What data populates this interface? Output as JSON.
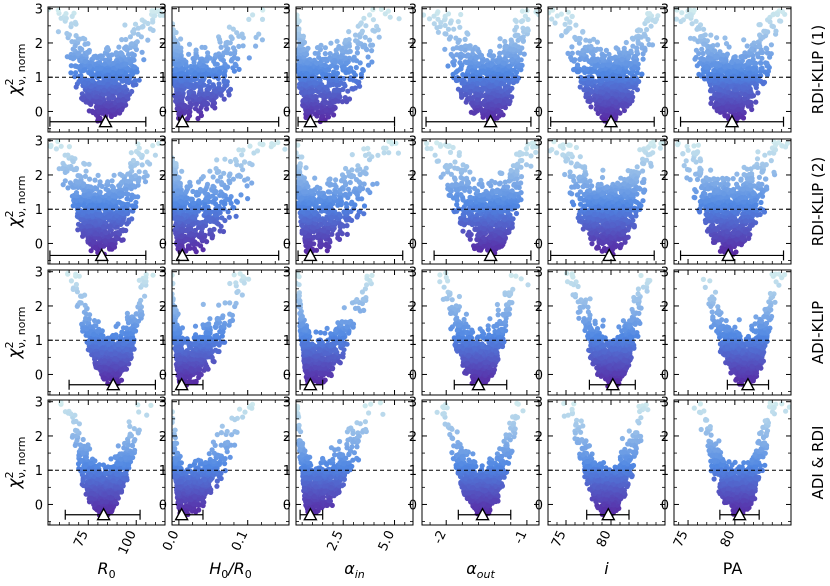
{
  "chart_data": {
    "type": "scatter",
    "rows": [
      {
        "name": "RDI-KLIP (1)"
      },
      {
        "name": "RDI-KLIP (2)"
      },
      {
        "name": "ADI-KLIP"
      },
      {
        "name": "ADI & RDI"
      }
    ],
    "columns": [
      {
        "label": "R",
        "label_sub": "0",
        "xticks": [
          75,
          100
        ],
        "xlim": [
          54,
          115
        ]
      },
      {
        "label": "H",
        "label_sub": "0",
        "label_tail": "/R",
        "label_tail_sub": "0",
        "xticks": [
          0.0,
          0.1
        ],
        "xlim": [
          -0.01,
          0.16
        ]
      },
      {
        "label": "α",
        "label_sub": "in",
        "xticks": [
          2.5,
          5.0
        ],
        "xlim": [
          0.2,
          5.9
        ]
      },
      {
        "label": "α",
        "label_sub": "out",
        "xticks": [
          -2,
          -1
        ],
        "xlim": [
          -2.3,
          -0.85
        ]
      },
      {
        "label": "i",
        "label_sub": "",
        "xticks": [
          75,
          80
        ],
        "xlim": [
          73,
          86
        ]
      },
      {
        "label": "PA",
        "label_sub": "",
        "xticks": [
          75,
          80
        ],
        "xlim": [
          73.5,
          86
        ]
      }
    ],
    "ylabel": {
      "main": "χ",
      "sup": "2",
      "sub": "ν, norm"
    },
    "ylim": [
      -0.6,
      3.05
    ],
    "yticks": [
      0,
      1,
      2,
      3
    ],
    "reference_line_y": 1,
    "best_fit": [
      [
        {
          "x": 84,
          "lo": 55,
          "hi": 105,
          "y": -0.3
        },
        {
          "x": 0.005,
          "lo": 0.0,
          "hi": 0.145,
          "y": -0.3
        },
        {
          "x": 0.9,
          "lo": 0.3,
          "hi": 5.0,
          "y": -0.3
        },
        {
          "x": -1.45,
          "lo": -2.25,
          "hi": -0.95,
          "y": -0.3
        },
        {
          "x": 80.0,
          "lo": 73.3,
          "hi": 84.8,
          "y": -0.3
        },
        {
          "x": 79.7,
          "lo": 74.2,
          "hi": 85.2,
          "y": -0.3
        }
      ],
      [
        {
          "x": 82,
          "lo": 55,
          "hi": 105,
          "y": -0.35
        },
        {
          "x": 0.005,
          "lo": 0.0,
          "hi": 0.145,
          "y": -0.35
        },
        {
          "x": 0.9,
          "lo": 0.3,
          "hi": 5.4,
          "y": -0.35
        },
        {
          "x": -1.45,
          "lo": -2.15,
          "hi": -0.95,
          "y": -0.35
        },
        {
          "x": 79.8,
          "lo": 73.3,
          "hi": 84.8,
          "y": -0.35
        },
        {
          "x": 79.3,
          "lo": 74.2,
          "hi": 85.2,
          "y": -0.35
        }
      ],
      [
        {
          "x": 88,
          "lo": 65,
          "hi": 110,
          "y": -0.3
        },
        {
          "x": 0.004,
          "lo": 0.0,
          "hi": 0.035,
          "y": -0.3
        },
        {
          "x": 0.9,
          "lo": 0.4,
          "hi": 1.5,
          "y": -0.3
        },
        {
          "x": -1.6,
          "lo": -1.9,
          "hi": -1.25,
          "y": -0.3
        },
        {
          "x": 80.2,
          "lo": 77.6,
          "hi": 82.7,
          "y": -0.3
        },
        {
          "x": 81.4,
          "lo": 79.2,
          "hi": 83.6,
          "y": -0.3
        }
      ],
      [
        {
          "x": 83,
          "lo": 63,
          "hi": 102,
          "y": -0.3
        },
        {
          "x": 0.004,
          "lo": 0.0,
          "hi": 0.035,
          "y": -0.3
        },
        {
          "x": 0.9,
          "lo": 0.4,
          "hi": 1.5,
          "y": -0.3
        },
        {
          "x": -1.55,
          "lo": -1.85,
          "hi": -1.2,
          "y": -0.3
        },
        {
          "x": 79.7,
          "lo": 77.3,
          "hi": 82.0,
          "y": -0.3
        },
        {
          "x": 80.5,
          "lo": 78.4,
          "hi": 82.6,
          "y": -0.3
        }
      ]
    ],
    "grid": false,
    "legend": "none",
    "colors": {
      "low": "#5a1e9c",
      "mid": "#4f86e2",
      "high": "#d2ecee",
      "reference": "#000000"
    }
  }
}
